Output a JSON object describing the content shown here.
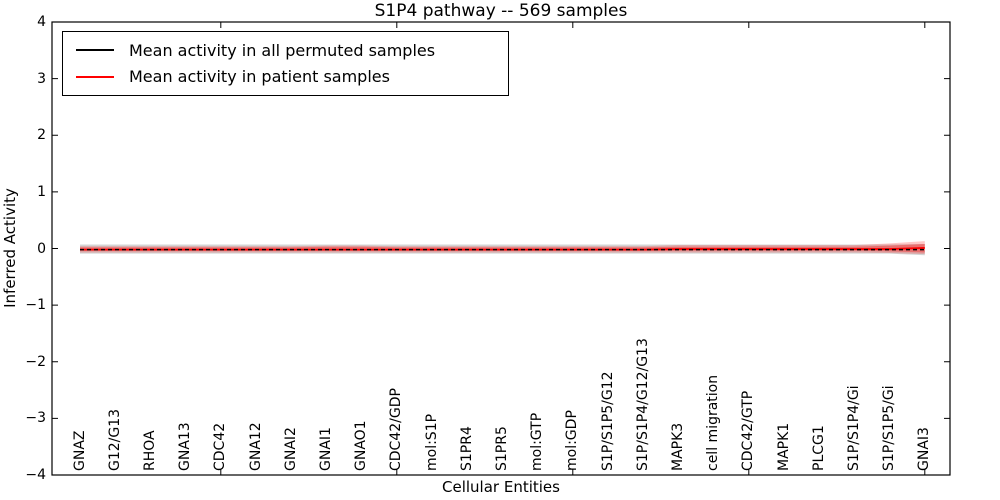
{
  "figure": {
    "background": "#ffffff"
  },
  "chart_data": {
    "type": "line",
    "title": "S1P4 pathway -- 569 samples",
    "xlabel": "Cellular Entities",
    "ylabel": "Inferred Activity",
    "ylim": [
      -4,
      4
    ],
    "yticks": [
      4,
      3,
      2,
      1,
      0,
      -1,
      -2,
      -3,
      -4
    ],
    "grid": false,
    "legend_position": "upper-left",
    "categories": [
      "GNAZ",
      "G12/G13",
      "RHOA",
      "GNA13",
      "CDC42",
      "GNA12",
      "GNAI2",
      "GNAI1",
      "GNAO1",
      "CDC42/GDP",
      "mol:S1P",
      "S1PR4",
      "S1PR5",
      "mol:GTP",
      "mol:GDP",
      "S1P/S1P5/G12",
      "S1P/S1P4/G12/G13",
      "MAPK3",
      "cell migration",
      "CDC42/GTP",
      "MAPK1",
      "PLCG1",
      "S1P/S1P4/Gi",
      "S1P/S1P5/Gi",
      "GNAI3"
    ],
    "major_xticks_at_indices": [
      4,
      9,
      14,
      19,
      24
    ],
    "series": [
      {
        "name": "Mean activity in all permuted samples",
        "color": "#000000",
        "line_style": "dashed",
        "values": [
          -0.02,
          -0.02,
          -0.02,
          -0.02,
          -0.02,
          -0.02,
          -0.02,
          -0.02,
          -0.02,
          -0.02,
          -0.02,
          -0.02,
          -0.02,
          -0.02,
          -0.02,
          -0.02,
          -0.02,
          -0.02,
          -0.02,
          -0.02,
          -0.02,
          -0.02,
          -0.02,
          -0.02,
          -0.02
        ]
      },
      {
        "name": "Mean activity in patient samples",
        "color": "#ff0000",
        "line_style": "solid",
        "values": [
          -0.02,
          -0.02,
          -0.02,
          -0.02,
          -0.02,
          -0.02,
          -0.02,
          -0.02,
          -0.02,
          -0.02,
          -0.02,
          -0.02,
          -0.02,
          -0.02,
          -0.02,
          -0.02,
          -0.02,
          -0.01,
          -0.01,
          -0.01,
          -0.01,
          -0.01,
          -0.01,
          -0.01,
          0.01
        ]
      }
    ],
    "bands": [
      {
        "name": "permuted-samples-spread",
        "color": "#aaaaaa",
        "opacity": 0.5,
        "upper": [
          0.07,
          0.07,
          0.07,
          0.07,
          0.07,
          0.07,
          0.07,
          0.07,
          0.07,
          0.07,
          0.07,
          0.07,
          0.07,
          0.07,
          0.07,
          0.07,
          0.07,
          0.07,
          0.07,
          0.07,
          0.07,
          0.07,
          0.07,
          0.07,
          0.08
        ],
        "lower": [
          -0.09,
          -0.09,
          -0.09,
          -0.09,
          -0.09,
          -0.09,
          -0.09,
          -0.09,
          -0.09,
          -0.09,
          -0.09,
          -0.09,
          -0.09,
          -0.09,
          -0.09,
          -0.09,
          -0.09,
          -0.09,
          -0.09,
          -0.09,
          -0.09,
          -0.09,
          -0.09,
          -0.09,
          -0.12
        ]
      },
      {
        "name": "patient-samples-spread-outer",
        "color": "#ff0000",
        "opacity": 0.22,
        "upper": [
          0.04,
          0.04,
          0.04,
          0.04,
          0.04,
          0.04,
          0.04,
          0.05,
          0.05,
          0.04,
          0.04,
          0.04,
          0.04,
          0.04,
          0.04,
          0.04,
          0.04,
          0.06,
          0.06,
          0.06,
          0.06,
          0.06,
          0.06,
          0.09,
          0.13
        ],
        "lower": [
          -0.07,
          -0.07,
          -0.07,
          -0.07,
          -0.07,
          -0.07,
          -0.07,
          -0.07,
          -0.07,
          -0.07,
          -0.07,
          -0.07,
          -0.07,
          -0.07,
          -0.07,
          -0.07,
          -0.07,
          -0.07,
          -0.07,
          -0.07,
          -0.07,
          -0.07,
          -0.07,
          -0.08,
          -0.1
        ]
      },
      {
        "name": "patient-samples-spread-inner",
        "color": "#ff0000",
        "opacity": 0.32,
        "upper": [
          0.02,
          0.02,
          0.02,
          0.02,
          0.02,
          0.02,
          0.02,
          0.03,
          0.03,
          0.02,
          0.02,
          0.02,
          0.02,
          0.02,
          0.02,
          0.02,
          0.02,
          0.03,
          0.03,
          0.03,
          0.03,
          0.03,
          0.03,
          0.05,
          0.08
        ],
        "lower": [
          -0.04,
          -0.04,
          -0.04,
          -0.04,
          -0.04,
          -0.04,
          -0.04,
          -0.04,
          -0.04,
          -0.04,
          -0.04,
          -0.04,
          -0.04,
          -0.04,
          -0.04,
          -0.04,
          -0.04,
          -0.04,
          -0.04,
          -0.04,
          -0.04,
          -0.04,
          -0.04,
          -0.05,
          -0.07
        ]
      }
    ]
  }
}
